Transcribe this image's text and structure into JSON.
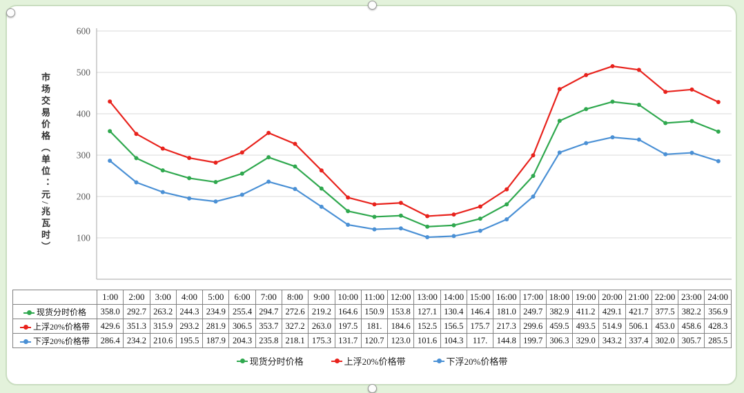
{
  "chart_data": {
    "type": "line",
    "title": "",
    "ylabel": "市场交易价格（单位：元/兆瓦时）",
    "xlabel": "",
    "ylim": [
      0,
      600
    ],
    "yticks": [
      100,
      200,
      300,
      400,
      500,
      600
    ],
    "grid": true,
    "legend_position": "bottom",
    "categories": [
      "1:00",
      "2:00",
      "3:00",
      "4:00",
      "5:00",
      "6:00",
      "7:00",
      "8:00",
      "9:00",
      "10:00",
      "11:00",
      "12:00",
      "13:00",
      "14:00",
      "15:00",
      "16:00",
      "17:00",
      "18:00",
      "19:00",
      "20:00",
      "21:00",
      "22:00",
      "23:00",
      "24:00"
    ],
    "series": [
      {
        "name": "现货分时价格",
        "color": "#2fa84e",
        "values": [
          "358.0",
          "292.7",
          "263.2",
          "244.3",
          "234.9",
          "255.4",
          "294.7",
          "272.6",
          "219.2",
          "164.6",
          "150.9",
          "153.8",
          "127.1",
          "130.4",
          "146.4",
          "181.0",
          "249.7",
          "382.9",
          "411.2",
          "429.1",
          "421.7",
          "377.5",
          "382.2",
          "356.9"
        ]
      },
      {
        "name": "上浮20%价格带",
        "color": "#e8221c",
        "values": [
          "429.6",
          "351.3",
          "315.9",
          "293.2",
          "281.9",
          "306.5",
          "353.7",
          "327.2",
          "263.0",
          "197.5",
          "181.",
          "184.6",
          "152.5",
          "156.5",
          "175.7",
          "217.3",
          "299.6",
          "459.5",
          "493.5",
          "514.9",
          "506.1",
          "453.0",
          "458.6",
          "428.3"
        ]
      },
      {
        "name": "下浮20%价格带",
        "color": "#4a90d5",
        "values": [
          "286.4",
          "234.2",
          "210.6",
          "195.5",
          "187.9",
          "204.3",
          "235.8",
          "218.1",
          "175.3",
          "131.7",
          "120.7",
          "123.0",
          "101.6",
          "104.3",
          "117.",
          "144.8",
          "199.7",
          "306.3",
          "329.0",
          "343.2",
          "337.4",
          "302.0",
          "305.7",
          "285.5"
        ]
      }
    ]
  },
  "colors": {
    "background": "#e3f2db",
    "card_border": "#c9ddc0",
    "gridline": "#d9d9d9",
    "axis": "#a6a6a6"
  }
}
